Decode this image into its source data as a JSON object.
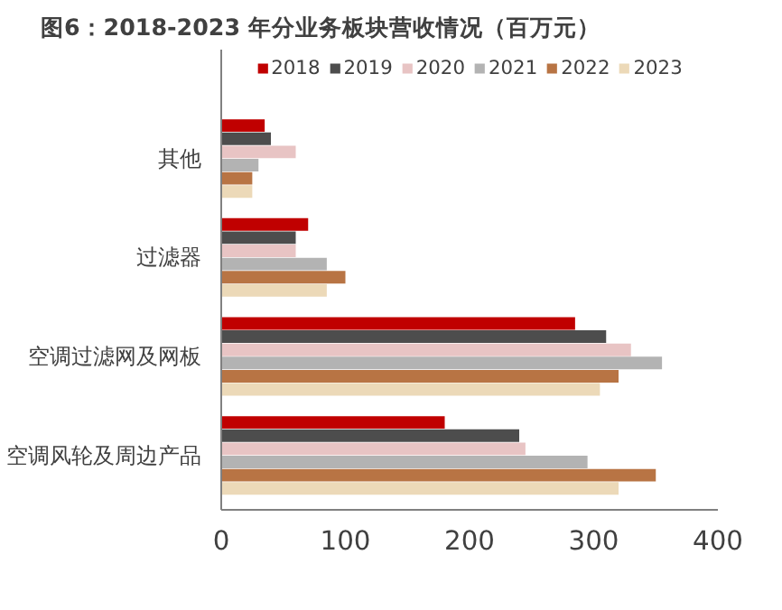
{
  "chart_data": {
    "type": "bar",
    "orientation": "horizontal",
    "title": "图6：2018-2023 年分业务板块营收情况（百万元）",
    "categories": [
      "其他",
      "过滤器",
      "空调过滤网及网板",
      "空调风轮及周边产品"
    ],
    "series": [
      {
        "name": "2018",
        "color": "#c00000",
        "values": [
          35,
          70,
          285,
          180
        ]
      },
      {
        "name": "2019",
        "color": "#4d4d4d",
        "values": [
          40,
          60,
          310,
          240
        ]
      },
      {
        "name": "2020",
        "color": "#e8c4c4",
        "values": [
          60,
          60,
          330,
          245
        ]
      },
      {
        "name": "2021",
        "color": "#b3b3b3",
        "values": [
          30,
          85,
          355,
          295
        ]
      },
      {
        "name": "2022",
        "color": "#b87444",
        "values": [
          25,
          100,
          320,
          350
        ]
      },
      {
        "name": "2023",
        "color": "#ecd9b8",
        "values": [
          25,
          85,
          305,
          320
        ]
      }
    ],
    "xlim": [
      0,
      400
    ],
    "xticks": [
      0,
      100,
      200,
      300,
      400
    ],
    "grid": false,
    "legend": "top"
  }
}
